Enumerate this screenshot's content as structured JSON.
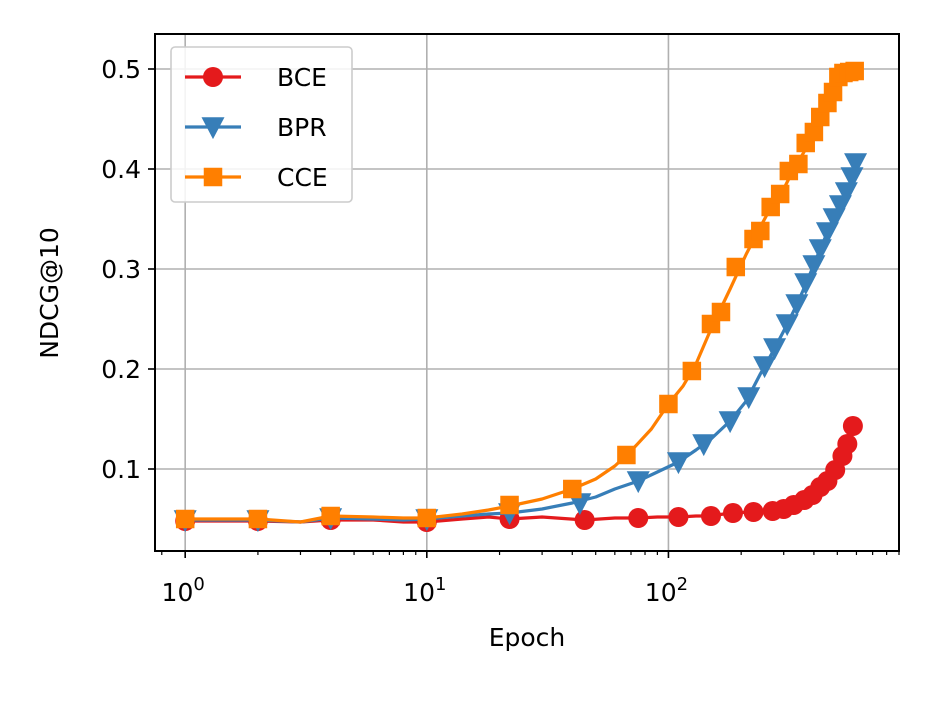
{
  "chart_data": {
    "type": "line",
    "xlabel": "Epoch",
    "ylabel": "NDCG@10",
    "xscale": "log",
    "xlim": [
      0.75,
      900
    ],
    "ylim": [
      0.018,
      0.535
    ],
    "grid": true,
    "legend_placement": "top-left",
    "x_ticks": [
      {
        "value": 1,
        "base": "10",
        "exp": "0"
      },
      {
        "value": 10,
        "base": "10",
        "exp": "1"
      },
      {
        "value": 100,
        "base": "10",
        "exp": "2"
      }
    ],
    "y_ticks": [
      {
        "value": 0.1,
        "label": "0.1"
      },
      {
        "value": 0.2,
        "label": "0.2"
      },
      {
        "value": 0.3,
        "label": "0.3"
      },
      {
        "value": 0.4,
        "label": "0.4"
      },
      {
        "value": 0.5,
        "label": "0.5"
      }
    ],
    "series": [
      {
        "name": "BCE",
        "color": "#e41a1c",
        "marker": "circle",
        "points": [
          [
            1,
            0.048
          ],
          [
            2,
            0.048
          ],
          [
            3,
            0.047
          ],
          [
            4,
            0.049
          ],
          [
            6,
            0.049
          ],
          [
            8,
            0.047
          ],
          [
            10,
            0.047
          ],
          [
            14,
            0.05
          ],
          [
            18,
            0.052
          ],
          [
            22,
            0.05
          ],
          [
            30,
            0.052
          ],
          [
            45,
            0.049
          ],
          [
            60,
            0.051
          ],
          [
            75,
            0.051
          ],
          [
            90,
            0.052
          ],
          [
            110,
            0.052
          ],
          [
            130,
            0.053
          ],
          [
            150,
            0.053
          ],
          [
            180,
            0.056
          ],
          [
            220,
            0.057
          ],
          [
            260,
            0.058
          ],
          [
            290,
            0.06
          ],
          [
            320,
            0.063
          ],
          [
            350,
            0.068
          ],
          [
            380,
            0.072
          ],
          [
            410,
            0.077
          ],
          [
            440,
            0.083
          ],
          [
            470,
            0.09
          ],
          [
            500,
            0.1
          ],
          [
            530,
            0.115
          ],
          [
            555,
            0.128
          ],
          [
            575,
            0.14
          ],
          [
            585,
            0.145
          ]
        ],
        "markers": [
          [
            1,
            0.048
          ],
          [
            2,
            0.048
          ],
          [
            4,
            0.049
          ],
          [
            10,
            0.047
          ],
          [
            22,
            0.05
          ],
          [
            45,
            0.049
          ],
          [
            75,
            0.051
          ],
          [
            110,
            0.052
          ],
          [
            150,
            0.053
          ],
          [
            185,
            0.056
          ],
          [
            225,
            0.057
          ],
          [
            270,
            0.058
          ],
          [
            300,
            0.06
          ],
          [
            330,
            0.064
          ],
          [
            365,
            0.069
          ],
          [
            395,
            0.074
          ],
          [
            425,
            0.082
          ],
          [
            455,
            0.088
          ],
          [
            490,
            0.099
          ],
          [
            525,
            0.113
          ],
          [
            550,
            0.125
          ],
          [
            580,
            0.143
          ]
        ]
      },
      {
        "name": "BPR",
        "color": "#377eb8",
        "marker": "triangle-down",
        "points": [
          [
            1,
            0.049
          ],
          [
            2,
            0.049
          ],
          [
            3,
            0.047
          ],
          [
            4,
            0.051
          ],
          [
            6,
            0.05
          ],
          [
            8,
            0.049
          ],
          [
            10,
            0.05
          ],
          [
            14,
            0.053
          ],
          [
            18,
            0.055
          ],
          [
            22,
            0.056
          ],
          [
            30,
            0.06
          ],
          [
            40,
            0.066
          ],
          [
            50,
            0.072
          ],
          [
            60,
            0.08
          ],
          [
            75,
            0.088
          ],
          [
            90,
            0.097
          ],
          [
            110,
            0.107
          ],
          [
            130,
            0.119
          ],
          [
            150,
            0.13
          ],
          [
            180,
            0.148
          ],
          [
            210,
            0.168
          ],
          [
            240,
            0.195
          ],
          [
            270,
            0.217
          ],
          [
            300,
            0.238
          ],
          [
            330,
            0.258
          ],
          [
            360,
            0.278
          ],
          [
            390,
            0.298
          ],
          [
            420,
            0.317
          ],
          [
            450,
            0.334
          ],
          [
            480,
            0.349
          ],
          [
            510,
            0.362
          ],
          [
            540,
            0.374
          ],
          [
            570,
            0.388
          ],
          [
            590,
            0.403
          ]
        ],
        "markers": [
          [
            1,
            0.049
          ],
          [
            2,
            0.049
          ],
          [
            4,
            0.051
          ],
          [
            10,
            0.05
          ],
          [
            22,
            0.056
          ],
          [
            43,
            0.066
          ],
          [
            75,
            0.088
          ],
          [
            110,
            0.107
          ],
          [
            140,
            0.125
          ],
          [
            180,
            0.148
          ],
          [
            215,
            0.172
          ],
          [
            250,
            0.203
          ],
          [
            275,
            0.221
          ],
          [
            310,
            0.245
          ],
          [
            340,
            0.265
          ],
          [
            370,
            0.286
          ],
          [
            400,
            0.304
          ],
          [
            425,
            0.32
          ],
          [
            455,
            0.337
          ],
          [
            485,
            0.351
          ],
          [
            515,
            0.364
          ],
          [
            545,
            0.377
          ],
          [
            575,
            0.392
          ],
          [
            595,
            0.406
          ]
        ]
      },
      {
        "name": "CCE",
        "color": "#ff7f00",
        "marker": "square",
        "points": [
          [
            1,
            0.05
          ],
          [
            2,
            0.05
          ],
          [
            3,
            0.047
          ],
          [
            4,
            0.053
          ],
          [
            6,
            0.052
          ],
          [
            8,
            0.051
          ],
          [
            10,
            0.051
          ],
          [
            14,
            0.055
          ],
          [
            18,
            0.059
          ],
          [
            22,
            0.063
          ],
          [
            30,
            0.07
          ],
          [
            40,
            0.08
          ],
          [
            50,
            0.09
          ],
          [
            60,
            0.103
          ],
          [
            70,
            0.118
          ],
          [
            85,
            0.14
          ],
          [
            100,
            0.165
          ],
          [
            115,
            0.183
          ],
          [
            130,
            0.205
          ],
          [
            150,
            0.24
          ],
          [
            180,
            0.28
          ],
          [
            210,
            0.315
          ],
          [
            240,
            0.342
          ],
          [
            270,
            0.365
          ],
          [
            300,
            0.38
          ],
          [
            330,
            0.4
          ],
          [
            360,
            0.415
          ],
          [
            390,
            0.43
          ],
          [
            420,
            0.446
          ],
          [
            450,
            0.462
          ],
          [
            480,
            0.474
          ],
          [
            510,
            0.487
          ],
          [
            540,
            0.496
          ],
          [
            570,
            0.498
          ],
          [
            590,
            0.5
          ]
        ],
        "markers": [
          [
            1,
            0.05
          ],
          [
            2,
            0.05
          ],
          [
            4,
            0.053
          ],
          [
            10,
            0.051
          ],
          [
            22,
            0.064
          ],
          [
            40,
            0.08
          ],
          [
            67,
            0.114
          ],
          [
            100,
            0.165
          ],
          [
            125,
            0.198
          ],
          [
            150,
            0.245
          ],
          [
            165,
            0.257
          ],
          [
            190,
            0.302
          ],
          [
            225,
            0.33
          ],
          [
            240,
            0.338
          ],
          [
            265,
            0.362
          ],
          [
            290,
            0.375
          ],
          [
            315,
            0.398
          ],
          [
            345,
            0.405
          ],
          [
            370,
            0.426
          ],
          [
            400,
            0.437
          ],
          [
            425,
            0.452
          ],
          [
            455,
            0.466
          ],
          [
            480,
            0.477
          ],
          [
            505,
            0.492
          ],
          [
            530,
            0.496
          ],
          [
            560,
            0.497
          ],
          [
            590,
            0.498
          ]
        ]
      }
    ]
  }
}
